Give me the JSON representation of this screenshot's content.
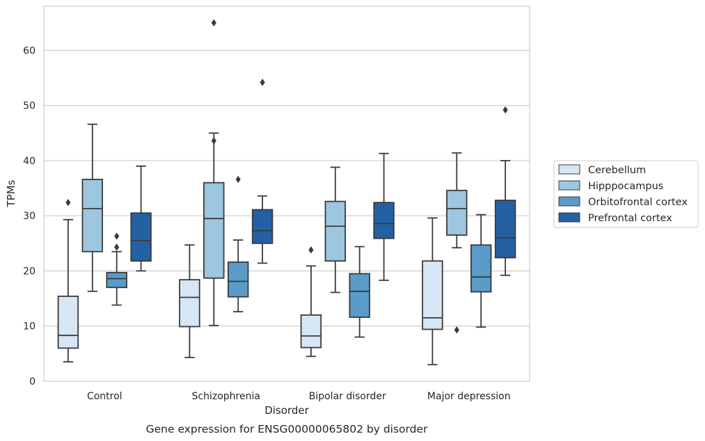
{
  "chart_data": {
    "type": "box",
    "title": "",
    "caption": "Gene expression for ENSG00000065802 by disorder",
    "xlabel": "Disorder",
    "ylabel": "TPMs",
    "ylim": [
      0,
      68
    ],
    "yticks": [
      0,
      10,
      20,
      30,
      40,
      50,
      60
    ],
    "grid": "horizontal",
    "legend_position": "right",
    "categories": [
      "Control",
      "Schizophrenia",
      "Bipolar disorder",
      "Major depression"
    ],
    "series": [
      {
        "name": "Cerebellum",
        "color": "#d6e6f4",
        "boxes": [
          {
            "whislo": 3.5,
            "q1": 6.0,
            "med": 8.3,
            "q3": 15.4,
            "whishi": 29.3,
            "fliers": [
              32.4
            ]
          },
          {
            "whislo": 4.3,
            "q1": 9.9,
            "med": 15.2,
            "q3": 18.4,
            "whishi": 24.7,
            "fliers": []
          },
          {
            "whislo": 4.5,
            "q1": 6.1,
            "med": 8.2,
            "q3": 12.0,
            "whishi": 20.9,
            "fliers": [
              23.8
            ]
          },
          {
            "whislo": 3.0,
            "q1": 9.4,
            "med": 11.5,
            "q3": 21.8,
            "whishi": 29.6,
            "fliers": []
          }
        ]
      },
      {
        "name": "Hipppocampus",
        "color": "#9dc6e0",
        "boxes": [
          {
            "whislo": 16.3,
            "q1": 23.5,
            "med": 31.3,
            "q3": 36.6,
            "whishi": 46.6,
            "fliers": []
          },
          {
            "whislo": 10.1,
            "q1": 18.7,
            "med": 29.5,
            "q3": 36.0,
            "whishi": 45.0,
            "fliers": [
              43.6,
              65.0
            ]
          },
          {
            "whislo": 16.1,
            "q1": 21.8,
            "med": 28.1,
            "q3": 32.6,
            "whishi": 38.8,
            "fliers": []
          },
          {
            "whislo": 24.2,
            "q1": 26.5,
            "med": 31.3,
            "q3": 34.6,
            "whishi": 41.4,
            "fliers": [
              9.3
            ]
          }
        ]
      },
      {
        "name": "Orbitofrontal cortex",
        "color": "#5a9bc7",
        "boxes": [
          {
            "whislo": 13.8,
            "q1": 17.0,
            "med": 18.6,
            "q3": 19.7,
            "whishi": 23.5,
            "fliers": [
              24.3,
              26.3
            ]
          },
          {
            "whislo": 12.6,
            "q1": 15.3,
            "med": 18.1,
            "q3": 21.6,
            "whishi": 25.6,
            "fliers": [
              36.6
            ]
          },
          {
            "whislo": 8.0,
            "q1": 11.6,
            "med": 16.3,
            "q3": 19.5,
            "whishi": 24.4,
            "fliers": []
          },
          {
            "whislo": 9.8,
            "q1": 16.2,
            "med": 18.9,
            "q3": 24.7,
            "whishi": 30.2,
            "fliers": []
          }
        ]
      },
      {
        "name": "Prefrontal cortex",
        "color": "#2460a4",
        "boxes": [
          {
            "whislo": 20.0,
            "q1": 21.8,
            "med": 25.5,
            "q3": 30.5,
            "whishi": 39.0,
            "fliers": []
          },
          {
            "whislo": 21.4,
            "q1": 25.0,
            "med": 27.3,
            "q3": 31.1,
            "whishi": 33.6,
            "fliers": [
              54.2
            ]
          },
          {
            "whislo": 18.3,
            "q1": 25.9,
            "med": 28.6,
            "q3": 32.4,
            "whishi": 41.3,
            "fliers": []
          },
          {
            "whislo": 19.2,
            "q1": 22.4,
            "med": 26.0,
            "q3": 32.8,
            "whishi": 40.0,
            "fliers": [
              49.2
            ]
          }
        ]
      }
    ]
  }
}
